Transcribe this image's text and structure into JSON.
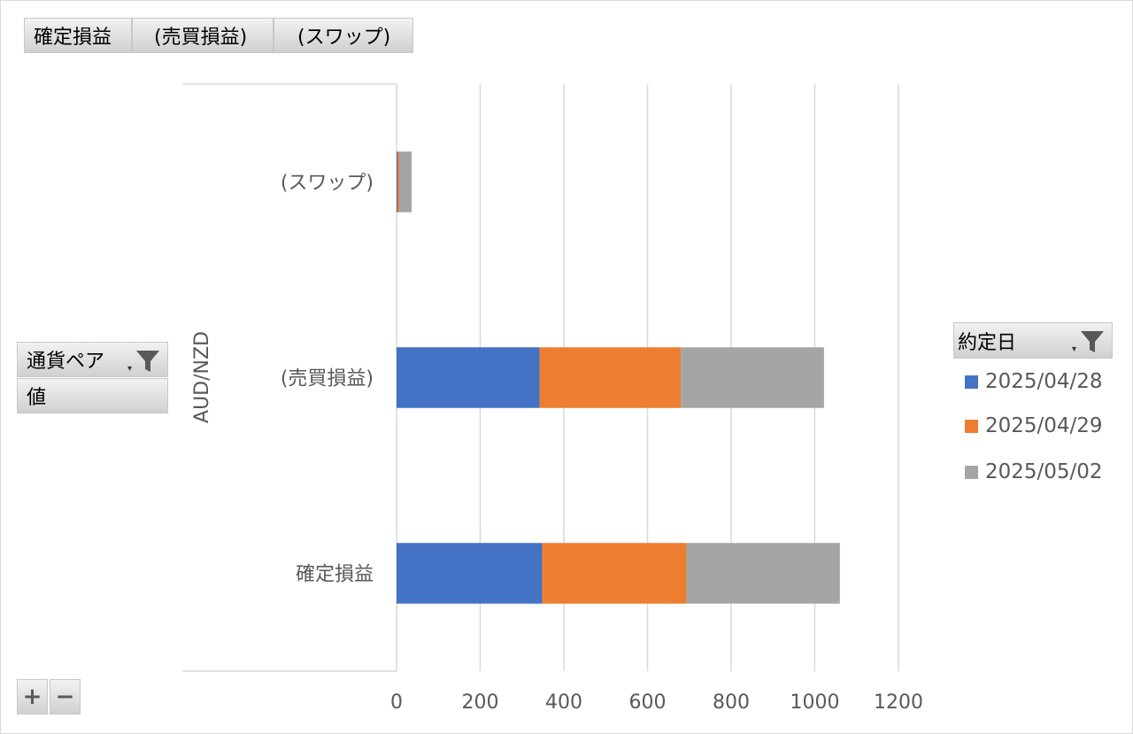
{
  "top_filters": [
    "確定損益",
    "(売買損益)",
    "(スワップ)"
  ],
  "row_fields": {
    "currency_pair": "通貨ペア",
    "value": "値"
  },
  "legend_field": "約定日",
  "zoom": {
    "plus": "+",
    "minus": "−"
  },
  "colors": {
    "2025/04/28": "#4472c4",
    "2025/04/29": "#ed7d31",
    "2025/05/02": "#a5a5a5",
    "gridline": "#d9d9d9",
    "text": "#595959"
  },
  "chart_data": {
    "type": "bar",
    "orientation": "horizontal",
    "stacked": true,
    "group_label": "AUD/NZD",
    "categories": [
      "(スワップ)",
      "(売買損益)",
      "確定損益"
    ],
    "series": [
      {
        "name": "2025/04/28",
        "values": [
          3,
          342,
          348
        ]
      },
      {
        "name": "2025/04/29",
        "values": [
          5,
          338,
          345
        ]
      },
      {
        "name": "2025/05/02",
        "values": [
          28,
          342,
          367
        ]
      }
    ],
    "xlim": [
      0,
      1200
    ],
    "xticks": [
      0,
      200,
      400,
      600,
      800,
      1000,
      1200
    ],
    "grid": true,
    "legend_position": "right"
  }
}
